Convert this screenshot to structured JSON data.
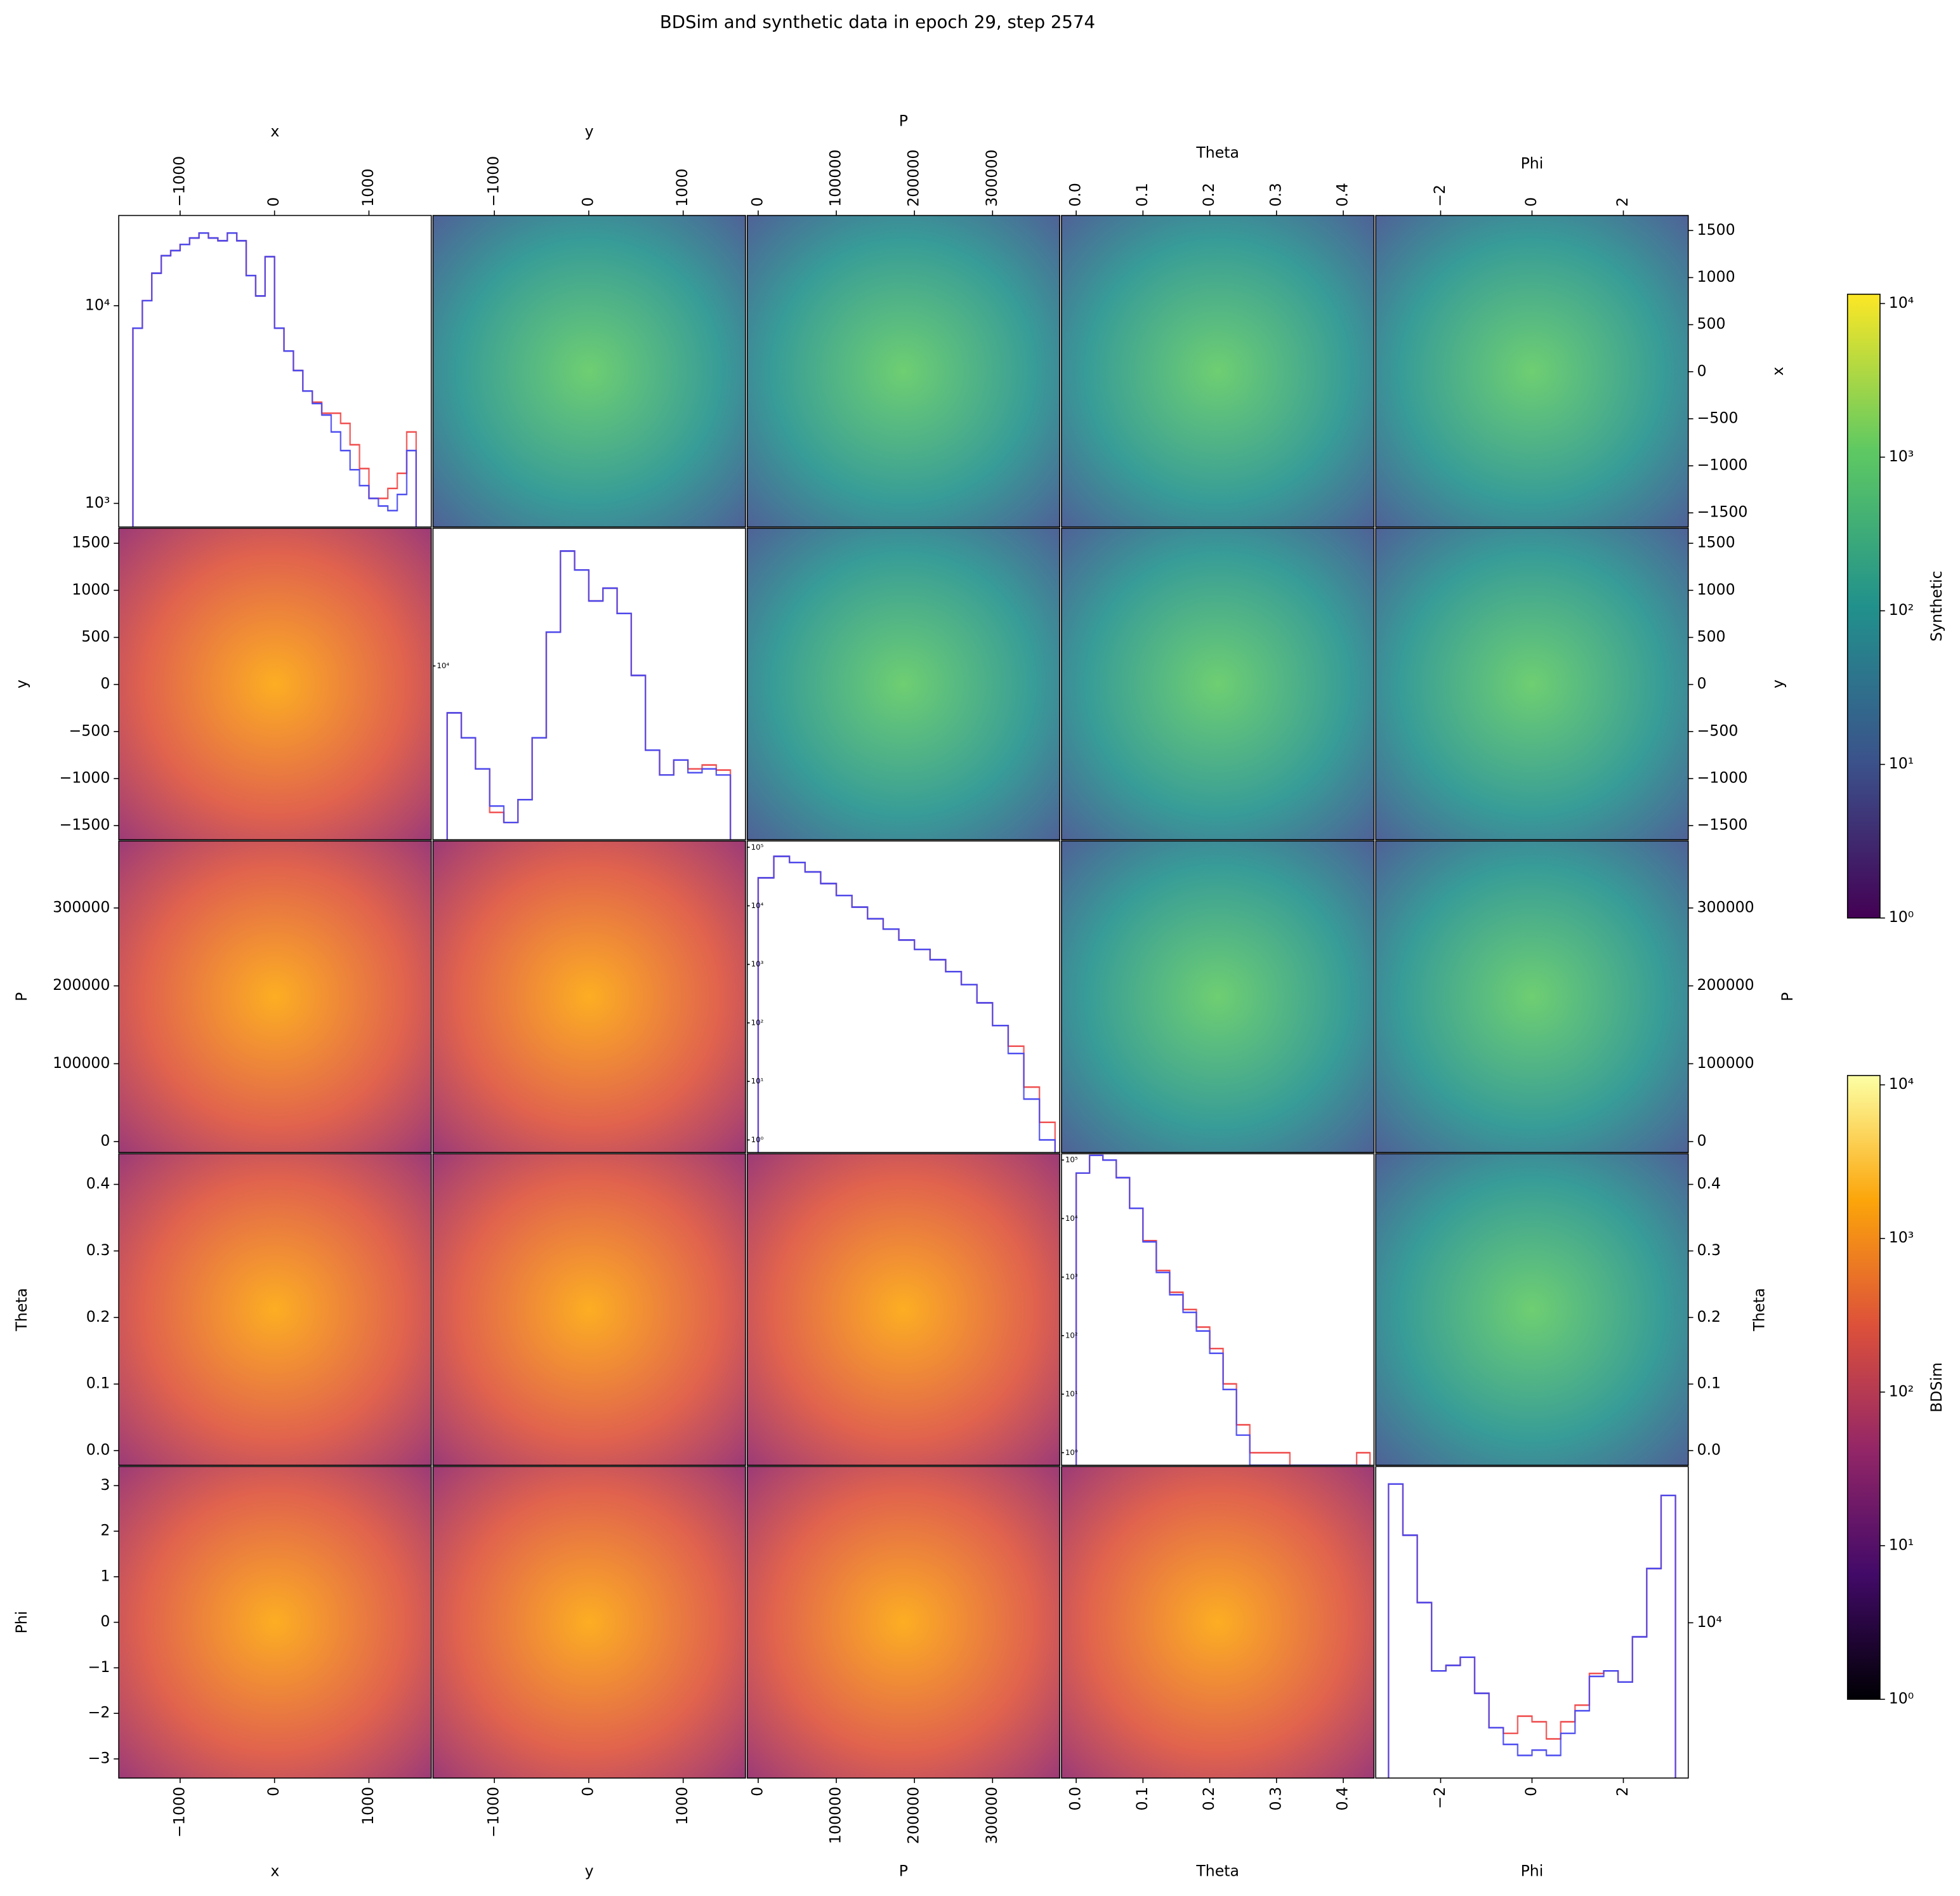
{
  "chart_data": {
    "type": "pairplot",
    "title": "BDSim and synthetic data in epoch 29, step 2574",
    "variables": [
      {
        "label": "x",
        "lim": [
          -1650,
          1660
        ],
        "col_ticks": [
          {
            "value": -1000,
            "label": "−1000"
          },
          0,
          1000
        ],
        "row_ticks": [
          {
            "value": -1500,
            "label": "−1500"
          },
          {
            "value": -1000,
            "label": "−1000"
          },
          {
            "value": -500,
            "label": "−500"
          },
          0,
          500,
          1000,
          1500
        ]
      },
      {
        "label": "y",
        "lim": [
          -1650,
          1660
        ],
        "col_ticks": [
          {
            "value": -1000,
            "label": "−1000"
          },
          0,
          1000
        ],
        "row_ticks": [
          {
            "value": -1500,
            "label": "−1500"
          },
          {
            "value": -1000,
            "label": "−1000"
          },
          {
            "value": -500,
            "label": "−500"
          },
          0,
          500,
          1000,
          1500
        ]
      },
      {
        "label": "P",
        "lim": [
          -14000,
          386000
        ],
        "col_ticks": [
          0,
          100000,
          200000,
          300000
        ],
        "row_ticks": [
          0,
          100000,
          200000,
          300000
        ]
      },
      {
        "label": "Theta",
        "lim": [
          -0.022,
          0.446
        ],
        "col_ticks": [
          {
            "value": 0,
            "label": "0.0"
          },
          0.1,
          0.2,
          0.3,
          0.4
        ],
        "row_ticks": [
          {
            "value": 0,
            "label": "0.0"
          },
          0.1,
          0.2,
          0.3,
          0.4
        ]
      },
      {
        "label": "Phi",
        "lim": [
          -3.42,
          3.42
        ],
        "col_ticks": [
          {
            "value": -2,
            "label": "−2"
          },
          0,
          2
        ],
        "row_ticks": [
          {
            "value": -3,
            "label": "−3"
          },
          {
            "value": -2,
            "label": "−2"
          },
          {
            "value": -1,
            "label": "−1"
          },
          0,
          1,
          2,
          3
        ]
      }
    ],
    "diagonal": [
      {
        "type": "histogram",
        "log_y": true,
        "ylim": [
          760,
          28600
        ],
        "yticks": [
          {
            "value": 1000,
            "label": "10³"
          },
          {
            "value": 10000,
            "label": "10⁴"
          }
        ],
        "bins": [
          -1500,
          -1400,
          -1300,
          -1200,
          -1100,
          -1000,
          -900,
          -800,
          -700,
          -600,
          -500,
          -400,
          -300,
          -200,
          -100,
          0,
          100,
          200,
          300,
          400,
          500,
          600,
          700,
          800,
          900,
          1000,
          1100,
          1200,
          1300,
          1400,
          1500
        ],
        "series": [
          {
            "color": "#f04848",
            "values": [
              7700,
              10600,
              14600,
              17900,
              19000,
              20400,
              22000,
              23300,
              22000,
              21300,
              23300,
              21300,
              14200,
              11200,
              17700,
              7700,
              5900,
              4700,
              3700,
              3250,
              2860,
              2860,
              2540,
              1980,
              1500,
              1060,
              1060,
              1190,
              1420,
              2300
            ]
          },
          {
            "color": "#4848f0",
            "values": [
              7700,
              10600,
              14600,
              17900,
              19000,
              20400,
              22000,
              23300,
              22000,
              21300,
              23300,
              21300,
              14200,
              11200,
              17700,
              7700,
              5900,
              4700,
              3700,
              3200,
              2800,
              2300,
              1850,
              1480,
              1230,
              1060,
              970,
              920,
              1110,
              1850
            ]
          }
        ]
      },
      {
        "type": "histogram",
        "log_y": true,
        "ylim": [
          2500,
          30000
        ],
        "yticks": [
          {
            "value": 10000,
            "label": "10⁴"
          }
        ],
        "bins": [
          -1500,
          -1350,
          -1200,
          -1050,
          -900,
          -750,
          -600,
          -450,
          -300,
          -150,
          0,
          150,
          300,
          450,
          600,
          750,
          900,
          1050,
          1200,
          1350,
          1500
        ],
        "series": [
          {
            "color": "#f04848",
            "values": [
              6880,
              5640,
              4400,
              3110,
              2870,
              3440,
              5640,
              13100,
              25000,
              21500,
              16800,
              18600,
              15200,
              9270,
              5110,
              4190,
              4720,
              4400,
              4540,
              4360
            ]
          },
          {
            "color": "#4848f0",
            "values": [
              6880,
              5640,
              4400,
              3270,
              2870,
              3440,
              5640,
              13100,
              25000,
              21500,
              16800,
              18600,
              15200,
              9270,
              5110,
              4190,
              4720,
              4270,
              4400,
              4190
            ]
          }
        ]
      },
      {
        "type": "histogram",
        "log_y": true,
        "ylim": [
          0.61,
          128000
        ],
        "yticks": [
          {
            "value": 1,
            "label": "10⁰"
          },
          {
            "value": 10,
            "label": "10¹"
          },
          {
            "value": 100,
            "label": "10²"
          },
          {
            "value": 1000,
            "label": "10³"
          },
          {
            "value": 10000,
            "label": "10⁴"
          },
          {
            "value": 100000,
            "label": "10⁵"
          }
        ],
        "bins": [
          0,
          20000,
          40000,
          60000,
          80000,
          100000,
          120000,
          140000,
          160000,
          180000,
          200000,
          220000,
          240000,
          260000,
          280000,
          300000,
          320000,
          340000,
          360000,
          380000
        ],
        "series": [
          {
            "color": "#f04848",
            "values": [
              30000,
              70000,
              55000,
              38000,
              24000,
              15000,
              9500,
              6000,
              4000,
              2600,
              1800,
              1200,
              750,
              450,
              220,
              90,
              40,
              8,
              2
            ]
          },
          {
            "color": "#4848f0",
            "values": [
              30000,
              70000,
              55000,
              38000,
              24000,
              15000,
              9500,
              6000,
              4000,
              2600,
              1800,
              1200,
              750,
              450,
              220,
              90,
              30,
              5,
              1
            ]
          }
        ]
      },
      {
        "type": "histogram",
        "log_y": true,
        "ylim": [
          0.61,
          128000
        ],
        "yticks": [
          {
            "value": 1,
            "label": "10⁰"
          },
          {
            "value": 10,
            "label": "10¹"
          },
          {
            "value": 100,
            "label": "10²"
          },
          {
            "value": 1000,
            "label": "10³"
          },
          {
            "value": 10000,
            "label": "10⁴"
          },
          {
            "value": 100000,
            "label": "10⁵"
          }
        ],
        "bins": [
          0,
          0.02,
          0.04,
          0.06,
          0.08,
          0.1,
          0.12,
          0.14,
          0.16,
          0.18,
          0.2,
          0.22,
          0.24,
          0.26,
          0.28,
          0.3,
          0.32,
          0.34,
          0.36,
          0.38,
          0.4,
          0.42,
          0.44
        ],
        "series": [
          {
            "color": "#f04848",
            "values": [
              60000,
              120000,
              100000,
              50000,
              15000,
              4200,
              1300,
              550,
              280,
              140,
              60,
              15,
              3,
              1,
              1,
              1,
              0,
              0,
              0,
              0,
              0,
              1
            ]
          },
          {
            "color": "#4848f0",
            "values": [
              60000,
              120000,
              100000,
              50000,
              15000,
              4000,
              1200,
              500,
              250,
              120,
              50,
              12,
              2,
              0,
              0,
              0,
              0,
              0,
              0,
              0,
              0,
              0
            ]
          }
        ]
      },
      {
        "type": "histogram",
        "log_y": true,
        "ylim": [
          2800,
          36000
        ],
        "yticks": [
          {
            "value": 10000,
            "label": "10⁴"
          }
        ],
        "bins": [
          -3.14,
          -2.826,
          -2.512,
          -2.198,
          -1.884,
          -1.57,
          -1.256,
          -0.942,
          -0.628,
          -0.314,
          0,
          0.314,
          0.628,
          0.942,
          1.256,
          1.57,
          1.884,
          2.198,
          2.512,
          2.826,
          3.14
        ],
        "series": [
          {
            "color": "#f04848",
            "values": [
              31200,
              20500,
              11800,
              6740,
              7050,
              7540,
              5610,
              4230,
              4040,
              4650,
              4440,
              3860,
              4440,
              5090,
              6600,
              6740,
              6150,
              8910,
              15600,
              28400
            ]
          },
          {
            "color": "#4848f0",
            "values": [
              31200,
              20500,
              11800,
              6740,
              7050,
              7540,
              5610,
              4230,
              3690,
              3370,
              3520,
              3370,
              4040,
              4860,
              6440,
              6740,
              6150,
              8910,
              15600,
              28400
            ]
          }
        ]
      }
    ],
    "colorbars": [
      {
        "label": "Synthetic",
        "log": true,
        "ylim": [
          1,
          11500
        ],
        "colors": [
          "#440154",
          "#3b528b",
          "#21918c",
          "#5ec962",
          "#fde725"
        ],
        "yticks": [
          {
            "value": 1,
            "label": "10⁰"
          },
          {
            "value": 10,
            "label": "10¹"
          },
          {
            "value": 100,
            "label": "10²"
          },
          {
            "value": 1000,
            "label": "10³"
          },
          {
            "value": 10000,
            "label": "10⁴"
          }
        ]
      },
      {
        "label": "BDSim",
        "log": true,
        "ylim": [
          1,
          11500
        ],
        "colors": [
          "#000004",
          "#420a68",
          "#932667",
          "#dd513a",
          "#fca50a",
          "#fcffa4"
        ],
        "yticks": [
          {
            "value": 1,
            "label": "10⁰"
          },
          {
            "value": 10,
            "label": "10¹"
          },
          {
            "value": 100,
            "label": "10²"
          },
          {
            "value": 1000,
            "label": "10³"
          },
          {
            "value": 10000,
            "label": "10⁴"
          }
        ]
      }
    ]
  }
}
